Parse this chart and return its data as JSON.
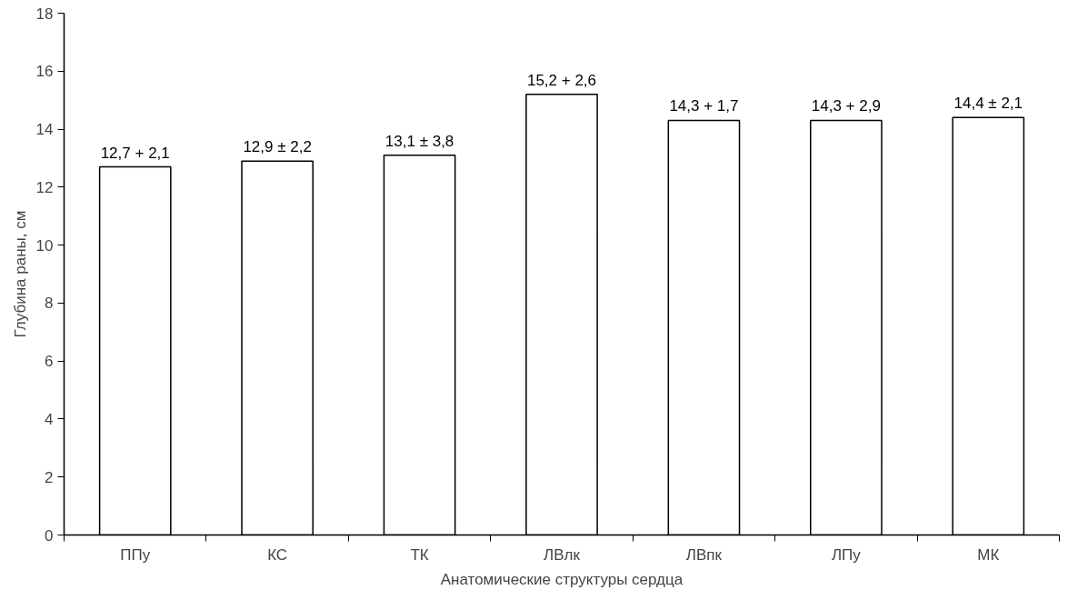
{
  "chart_data": {
    "type": "bar",
    "xlabel": "Анатомические структуры сердца",
    "ylabel": "Глубина раны, см",
    "categories": [
      "ППу",
      "КС",
      "ТК",
      "ЛВлк",
      "ЛВпк",
      "ЛПу",
      "МК"
    ],
    "values": [
      12.7,
      12.9,
      13.1,
      15.2,
      14.3,
      14.3,
      14.4
    ],
    "value_labels": [
      "12,7 + 2,1",
      "12,9 ± 2,2",
      "13,1 ± 3,8",
      "15,2 + 2,6",
      "14,3 + 1,7",
      "14,3 + 2,9",
      "14,4 ± 2,1"
    ],
    "color": "#ffffff",
    "ylim": [
      0,
      18
    ],
    "yticks": [
      0,
      2,
      4,
      6,
      8,
      10,
      12,
      14,
      16,
      18
    ],
    "grid": false
  }
}
